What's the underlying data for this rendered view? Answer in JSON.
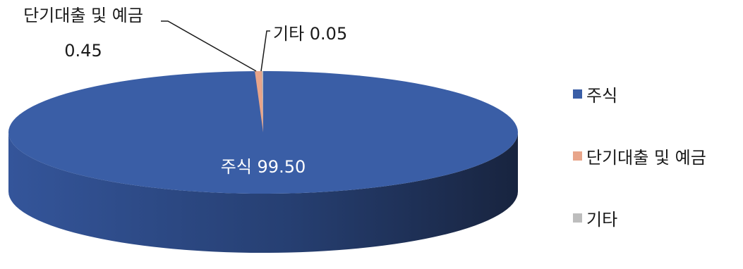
{
  "chart_data": {
    "type": "pie",
    "style": "3d",
    "slices": [
      {
        "name": "주식",
        "value": 99.5,
        "color": "#3A5EA6",
        "label": "주식 99.50"
      },
      {
        "name": "단기대출 및 예금",
        "value": 0.45,
        "color": "#E8A58A",
        "label_line1": "단기대출 및 예금",
        "label_line2": "0.45"
      },
      {
        "name": "기타",
        "value": 0.05,
        "color": "#BDBDBD",
        "label": "기타 0.05"
      }
    ],
    "legend": {
      "position": "right",
      "items": [
        "주식",
        "단기대출 및 예금",
        "기타"
      ]
    }
  }
}
